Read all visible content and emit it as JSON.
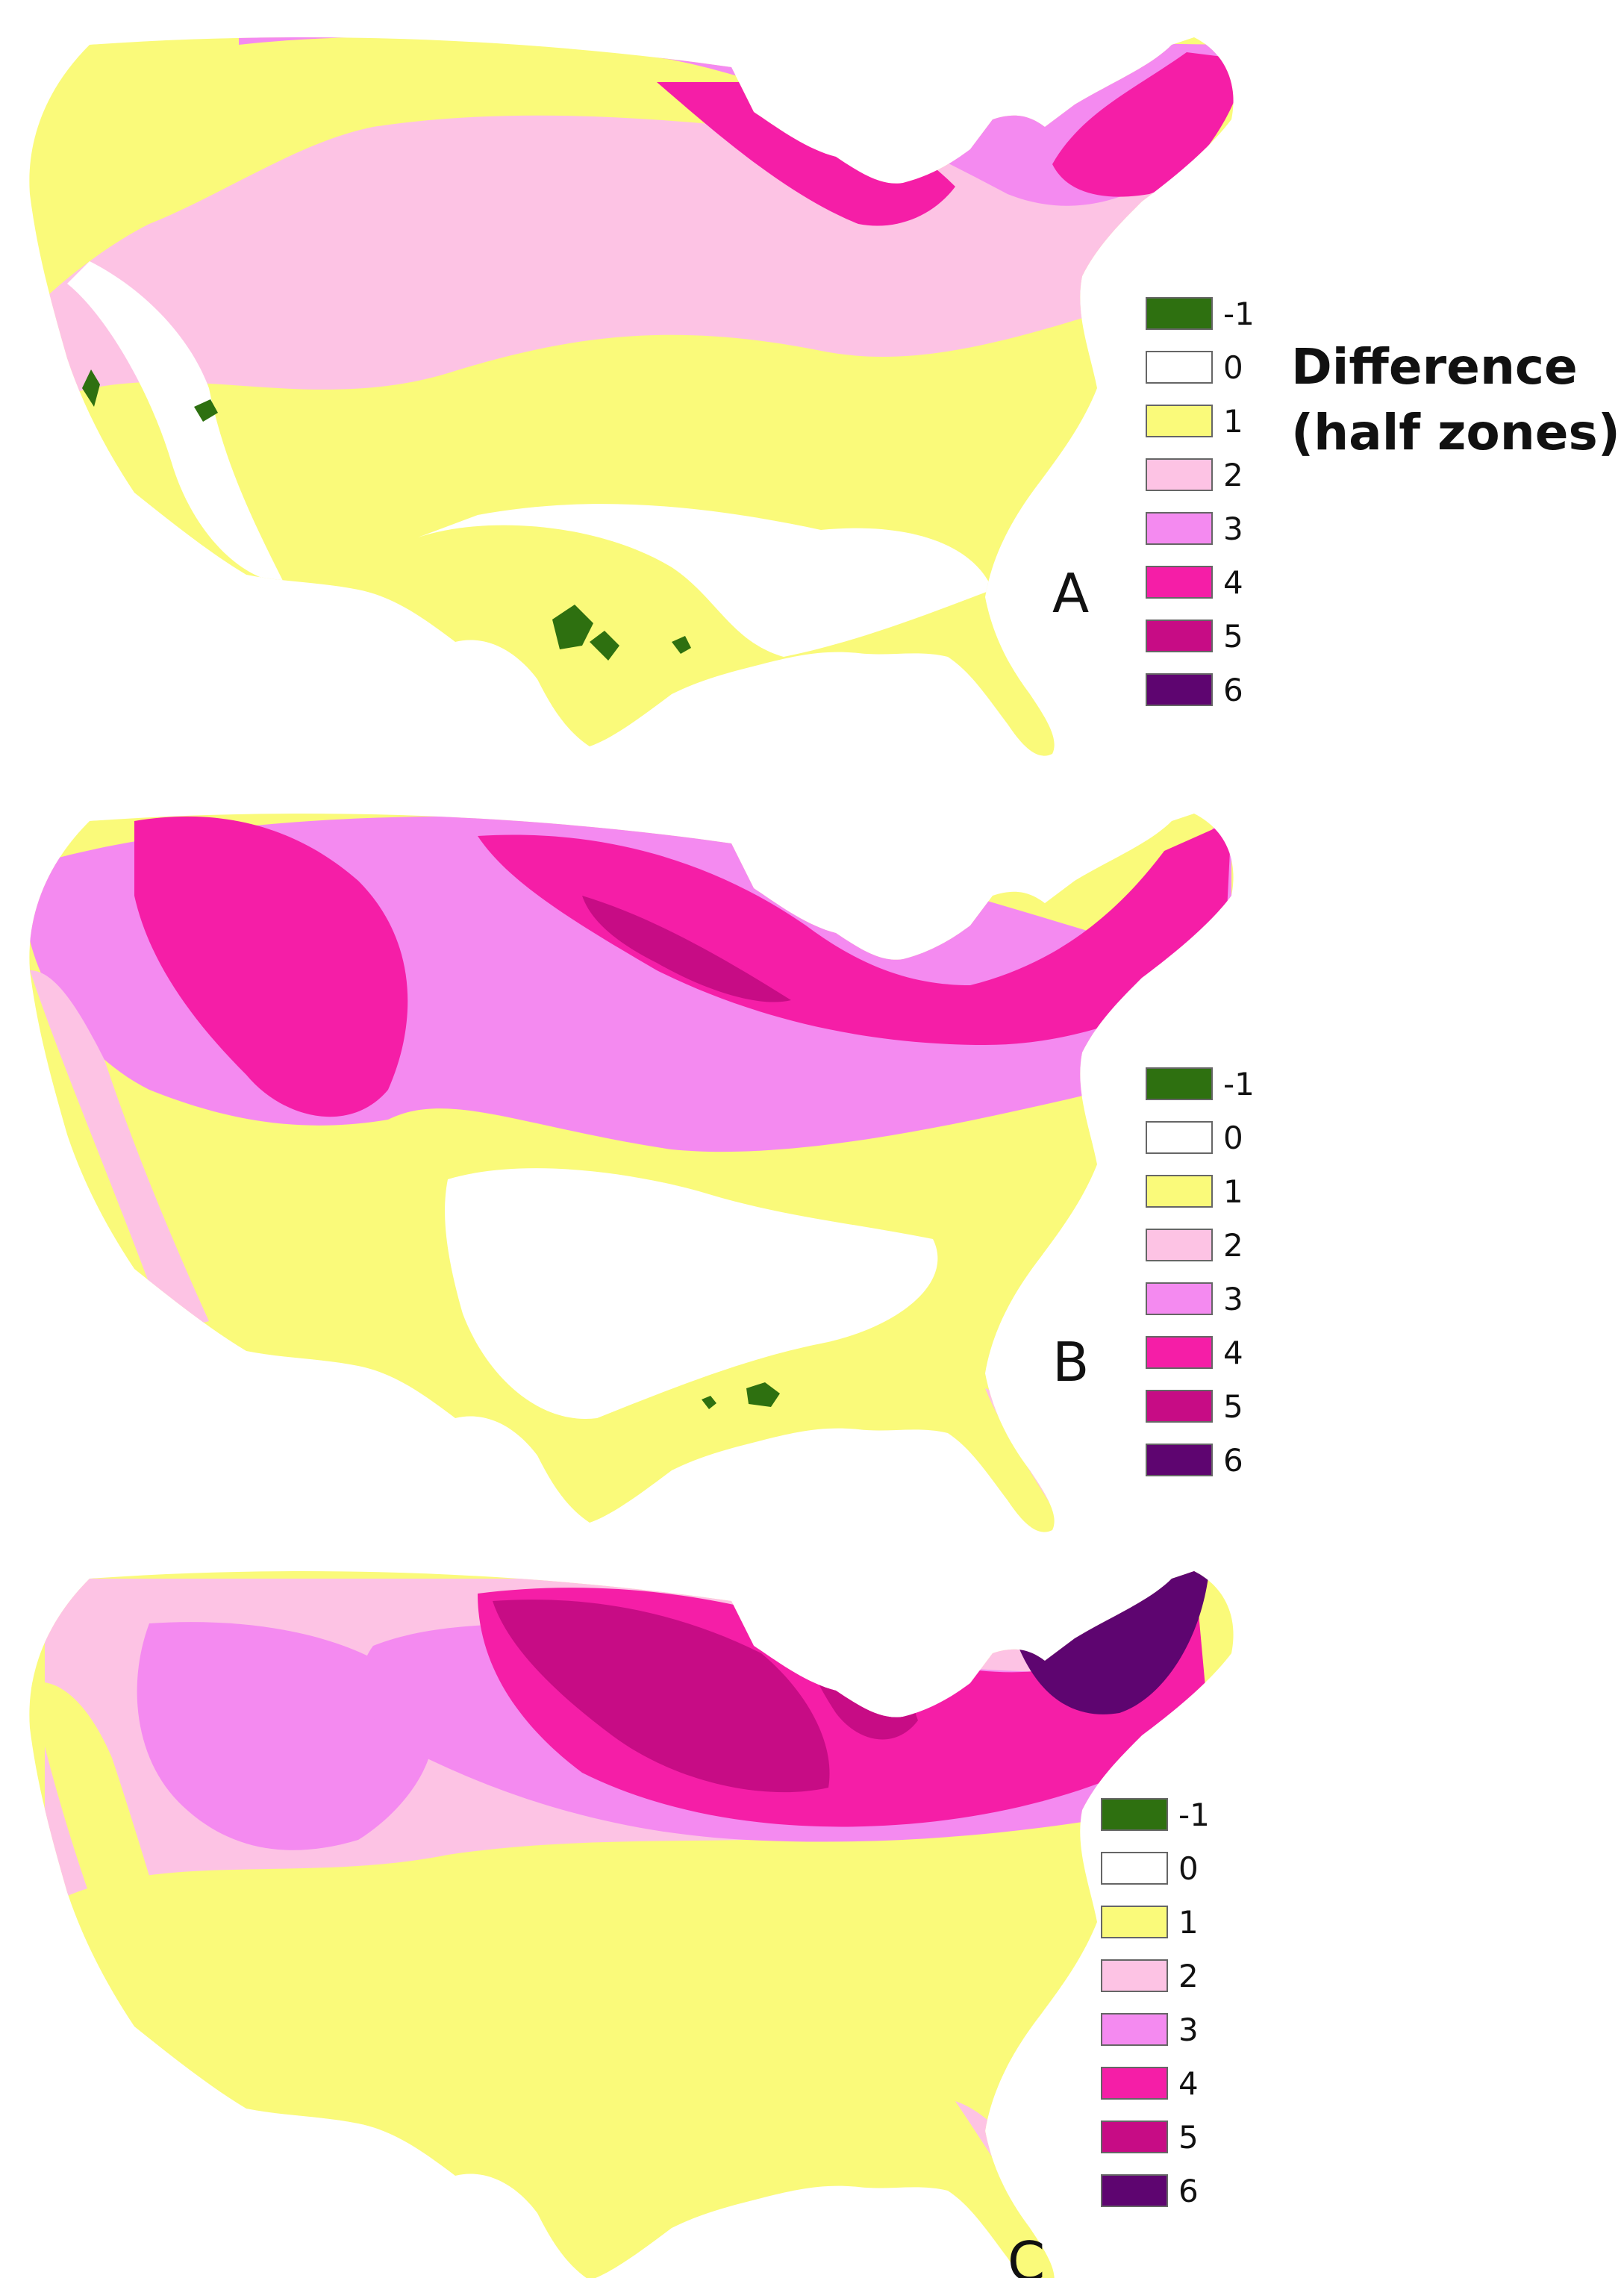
{
  "legend": {
    "title_line1": "Difference",
    "title_line2": "(half zones)",
    "entries": [
      {
        "label": "-1",
        "color": "#2e7010"
      },
      {
        "label": "0",
        "color": "#ffffff"
      },
      {
        "label": "1",
        "color": "#fafa7a"
      },
      {
        "label": "2",
        "color": "#fdc3e4"
      },
      {
        "label": "3",
        "color": "#f48af0"
      },
      {
        "label": "4",
        "color": "#f51ea7"
      },
      {
        "label": "5",
        "color": "#c70c85"
      },
      {
        "label": "6",
        "color": "#5e0570"
      }
    ]
  },
  "panels": [
    {
      "letter": "A"
    },
    {
      "letter": "B"
    },
    {
      "letter": "C"
    }
  ]
}
